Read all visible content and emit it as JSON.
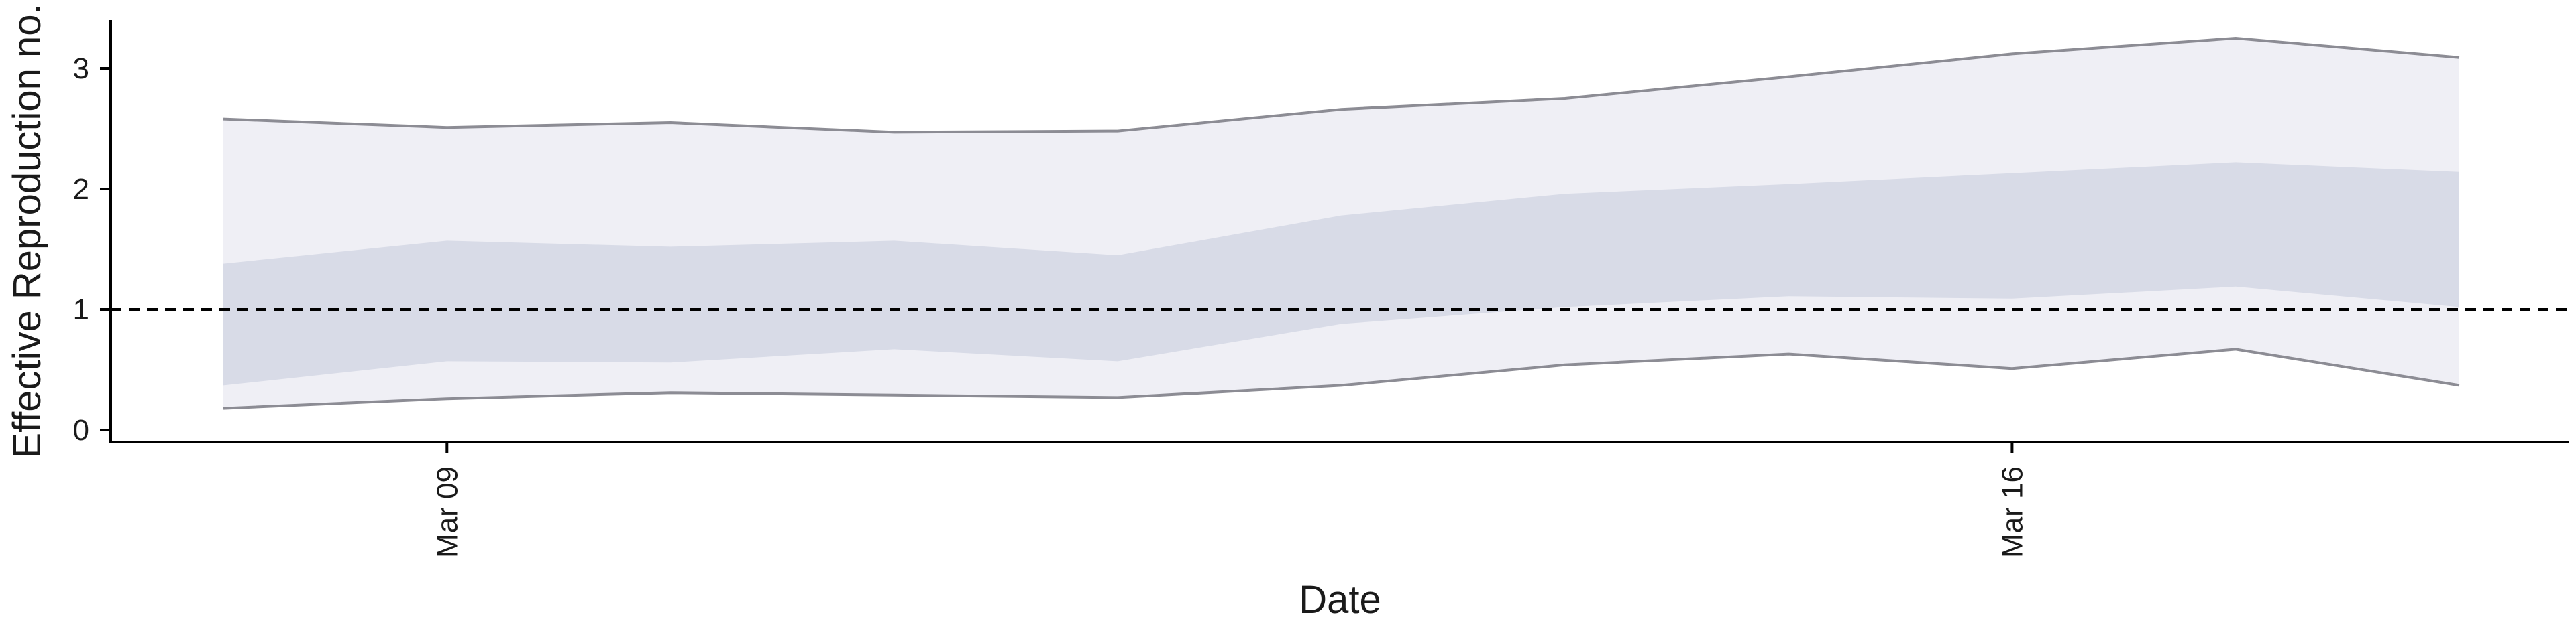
{
  "chart_data": {
    "type": "area",
    "xlabel": "Date",
    "ylabel": "Effective Reproduction no.",
    "x": [
      "2020-03-08",
      "2020-03-09",
      "2020-03-10",
      "2020-03-11",
      "2020-03-12",
      "2020-03-13",
      "2020-03-14",
      "2020-03-15",
      "2020-03-16",
      "2020-03-17",
      "2020-03-18"
    ],
    "x_ticks": [
      {
        "date": "2020-03-09",
        "label": "Mar 09"
      },
      {
        "date": "2020-03-16",
        "label": "Mar 16"
      }
    ],
    "y_ticks": [
      0,
      1,
      2,
      3
    ],
    "ylim": [
      -0.1,
      3.4
    ],
    "reference_line": {
      "y": 1,
      "style": "dashed"
    },
    "bands": [
      {
        "interval": "outer",
        "lower": [
          0.18,
          0.26,
          0.31,
          0.29,
          0.27,
          0.37,
          0.54,
          0.63,
          0.51,
          0.67,
          0.37
        ],
        "upper": [
          2.58,
          2.51,
          2.55,
          2.47,
          2.48,
          2.66,
          2.75,
          2.93,
          3.12,
          3.25,
          3.09
        ]
      },
      {
        "interval": "inner",
        "lower": [
          0.37,
          0.57,
          0.56,
          0.67,
          0.57,
          0.88,
          1.02,
          1.11,
          1.09,
          1.19,
          1.02
        ],
        "upper": [
          1.38,
          1.57,
          1.52,
          1.57,
          1.45,
          1.78,
          1.96,
          2.04,
          2.13,
          2.22,
          2.14
        ]
      }
    ],
    "colors": {
      "outer_band": "#efeff5",
      "inner_band": "#d8dbe7",
      "bound_line": "#8c8c94",
      "reference_line": "#000000",
      "axis": "#000000"
    },
    "grid": false,
    "legend": "none"
  }
}
